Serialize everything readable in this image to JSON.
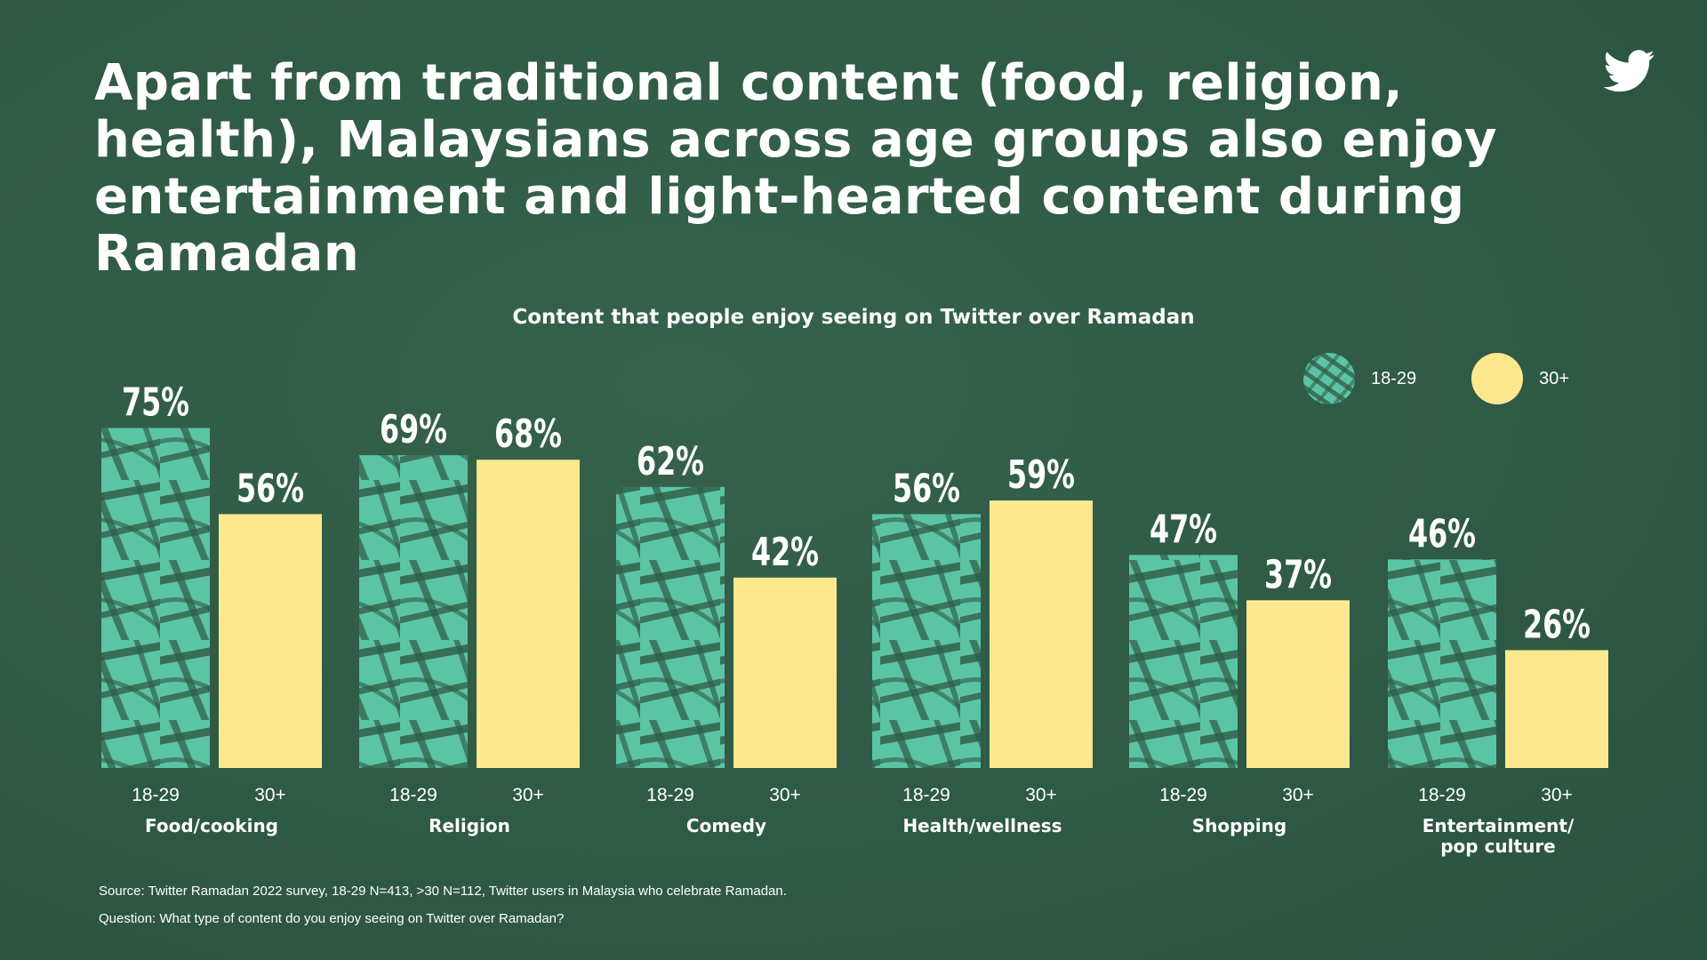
{
  "headline": "Apart from traditional content (food, religion, health), Malaysians across age groups also enjoy entertainment and light-hearted content during Ramadan",
  "colors": {
    "background": "#2f5a45",
    "series_18_29": "#5bc4a4",
    "series_30_plus": "#fde88f",
    "text": "#ffffff"
  },
  "icons": {
    "brand": "twitter-bird-icon"
  },
  "legend": {
    "items": [
      {
        "label": "18-29",
        "color": "#5bc4a4"
      },
      {
        "label": "30+",
        "color": "#fde88f"
      }
    ]
  },
  "chart_data": {
    "type": "bar",
    "title": "Content that people enjoy seeing on Twitter over Ramadan",
    "categories": [
      "Food/cooking",
      "Religion",
      "Comedy",
      "Health/wellness",
      "Shopping",
      "Entertainment/\npop culture"
    ],
    "series": [
      {
        "name": "18-29",
        "values": [
          75,
          69,
          62,
          56,
          47,
          46
        ],
        "labels": [
          "75%",
          "69%",
          "62%",
          "56%",
          "47%",
          "46%"
        ]
      },
      {
        "name": "30+",
        "values": [
          56,
          68,
          42,
          59,
          37,
          26
        ],
        "labels": [
          "56%",
          "68%",
          "42%",
          "59%",
          "37%",
          "26%"
        ]
      }
    ],
    "unit": "%",
    "ylim": [
      0,
      100
    ],
    "grid": false,
    "legend_position": "top-right"
  },
  "footnotes": {
    "source": "Source: Twitter Ramadan 2022 survey, 18-29 N=413, >30 N=112, Twitter users in Malaysia who celebrate Ramadan.",
    "question": "Question: What type of content do you enjoy seeing on Twitter over Ramadan?"
  }
}
